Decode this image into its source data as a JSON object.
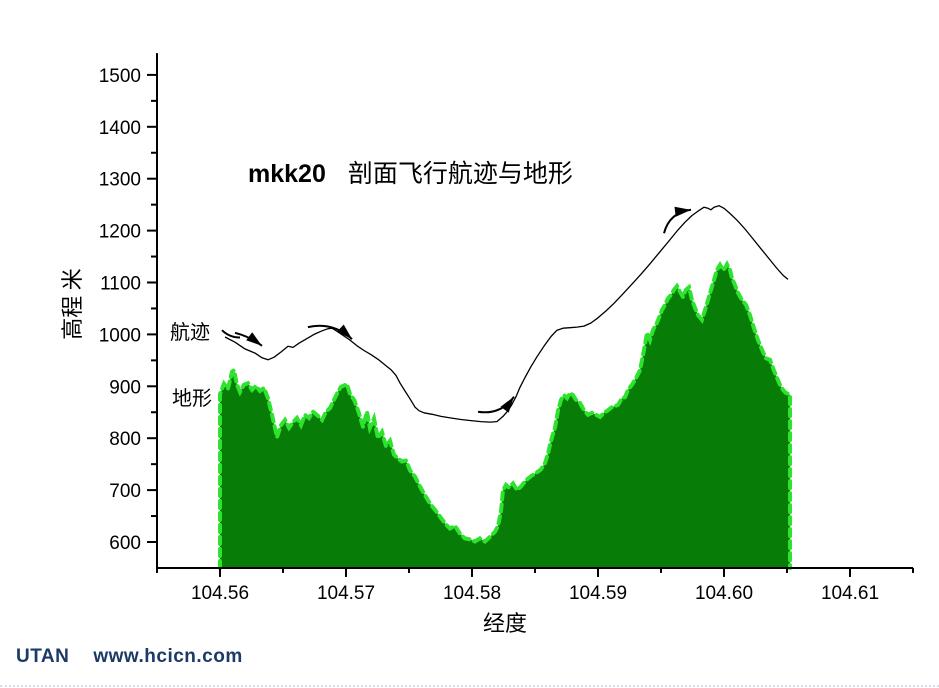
{
  "title": {
    "prefix": "mkk20",
    "text": "剖面飞行航迹与地形"
  },
  "series_labels": {
    "path": "航迹",
    "terrain": "地形"
  },
  "footer": {
    "brand": "UTAN",
    "url": "www.hcicn.com"
  },
  "colors": {
    "terrain_fill": "#077d07",
    "terrain_edge": "#2ee32e",
    "path_line": "#000000",
    "axis": "#000000",
    "footer_text": "#1c3a66"
  },
  "chart_data": {
    "type": "area+line",
    "title": "mkk20  剖面飞行航迹与地形",
    "xlabel": "经度",
    "ylabel": "高程 米",
    "xlim": [
      104.555,
      104.615
    ],
    "ylim": [
      550,
      1542
    ],
    "x_major_ticks": [
      104.56,
      104.57,
      104.58,
      104.59,
      104.6,
      104.61
    ],
    "x_minor_step": 0.005,
    "y_major_ticks": [
      600,
      700,
      800,
      900,
      1000,
      1100,
      1200,
      1300,
      1400,
      1500
    ],
    "y_minor_step": 50,
    "grid": false,
    "legend_position": "none",
    "series": [
      {
        "name": "航迹",
        "type": "line",
        "points": [
          [
            104.5604,
            995
          ],
          [
            104.56119,
            985
          ],
          [
            104.56198,
            972
          ],
          [
            104.56278,
            964
          ],
          [
            104.56333,
            955
          ],
          [
            104.56381,
            951
          ],
          [
            104.56429,
            956
          ],
          [
            104.56484,
            966
          ],
          [
            104.5654,
            977
          ],
          [
            104.56579,
            975
          ],
          [
            104.56627,
            983
          ],
          [
            104.56683,
            991
          ],
          [
            104.56746,
            1000
          ],
          [
            104.5681,
            1007
          ],
          [
            104.56857,
            1011
          ],
          [
            104.56889,
            1012
          ],
          [
            104.56929,
            1006
          ],
          [
            104.56976,
            998
          ],
          [
            104.57032,
            989
          ],
          [
            104.57087,
            978
          ],
          [
            104.57143,
            969
          ],
          [
            104.57198,
            961
          ],
          [
            104.57254,
            952
          ],
          [
            104.5731,
            941
          ],
          [
            104.57357,
            932
          ],
          [
            104.57397,
            921
          ],
          [
            104.57429,
            906
          ],
          [
            104.57468,
            891
          ],
          [
            104.57508,
            876
          ],
          [
            104.57548,
            860
          ],
          [
            104.57579,
            853
          ],
          [
            104.57619,
            849
          ],
          [
            104.57683,
            846
          ],
          [
            104.57754,
            842
          ],
          [
            104.57833,
            839
          ],
          [
            104.57913,
            836
          ],
          [
            104.57992,
            834
          ],
          [
            104.58071,
            832
          ],
          [
            104.58143,
            831
          ],
          [
            104.58198,
            832
          ],
          [
            104.58246,
            842
          ],
          [
            104.58286,
            853
          ],
          [
            104.58317,
            865
          ],
          [
            104.58349,
            880
          ],
          [
            104.58381,
            898
          ],
          [
            104.58421,
            917
          ],
          [
            104.58468,
            938
          ],
          [
            104.58516,
            957
          ],
          [
            104.58571,
            977
          ],
          [
            104.58627,
            996
          ],
          [
            104.58675,
            1008
          ],
          [
            104.58722,
            1012
          ],
          [
            104.58778,
            1013
          ],
          [
            104.58833,
            1014
          ],
          [
            104.58889,
            1016
          ],
          [
            104.58944,
            1022
          ],
          [
            104.59,
            1032
          ],
          [
            104.59063,
            1045
          ],
          [
            104.59127,
            1060
          ],
          [
            104.59198,
            1078
          ],
          [
            104.5927,
            1097
          ],
          [
            104.59341,
            1116
          ],
          [
            104.59413,
            1136
          ],
          [
            104.59484,
            1157
          ],
          [
            104.59556,
            1178
          ],
          [
            104.59627,
            1199
          ],
          [
            104.5969,
            1216
          ],
          [
            104.59746,
            1229
          ],
          [
            104.59802,
            1239
          ],
          [
            104.59841,
            1245
          ],
          [
            104.59873,
            1243
          ],
          [
            104.59897,
            1240
          ],
          [
            104.59921,
            1245
          ],
          [
            104.5996,
            1248
          ],
          [
            104.6,
            1243
          ],
          [
            104.60048,
            1233
          ],
          [
            104.60103,
            1220
          ],
          [
            104.60167,
            1203
          ],
          [
            104.6023,
            1184
          ],
          [
            104.60294,
            1165
          ],
          [
            104.60357,
            1146
          ],
          [
            104.60421,
            1127
          ],
          [
            104.60468,
            1114
          ],
          [
            104.60508,
            1106
          ]
        ]
      },
      {
        "name": "地形",
        "type": "area",
        "points": [
          [
            104.56,
            885
          ],
          [
            104.56032,
            905
          ],
          [
            104.56063,
            895
          ],
          [
            104.56095,
            928
          ],
          [
            104.56111,
            931
          ],
          [
            104.56135,
            903
          ],
          [
            104.56159,
            889
          ],
          [
            104.5619,
            903
          ],
          [
            104.56222,
            906
          ],
          [
            104.56254,
            893
          ],
          [
            104.56286,
            901
          ],
          [
            104.56317,
            891
          ],
          [
            104.56349,
            897
          ],
          [
            104.56381,
            877
          ],
          [
            104.56413,
            845
          ],
          [
            104.56452,
            802
          ],
          [
            104.56484,
            825
          ],
          [
            104.56516,
            835
          ],
          [
            104.56548,
            820
          ],
          [
            104.56579,
            831
          ],
          [
            104.56611,
            839
          ],
          [
            104.56643,
            825
          ],
          [
            104.56675,
            845
          ],
          [
            104.56706,
            839
          ],
          [
            104.56738,
            851
          ],
          [
            104.56778,
            843
          ],
          [
            104.5681,
            835
          ],
          [
            104.56841,
            851
          ],
          [
            104.56873,
            858
          ],
          [
            104.56905,
            874
          ],
          [
            104.56937,
            890
          ],
          [
            104.5696,
            899
          ],
          [
            104.57008,
            904
          ],
          [
            104.57032,
            885
          ],
          [
            104.57064,
            874
          ],
          [
            104.57095,
            854
          ],
          [
            104.57135,
            822
          ],
          [
            104.57167,
            851
          ],
          [
            104.5719,
            820
          ],
          [
            104.57222,
            838
          ],
          [
            104.57254,
            800
          ],
          [
            104.57286,
            812
          ],
          [
            104.57317,
            785
          ],
          [
            104.57349,
            795
          ],
          [
            104.57381,
            768
          ],
          [
            104.57413,
            761
          ],
          [
            104.57444,
            755
          ],
          [
            104.57476,
            757
          ],
          [
            104.57508,
            738
          ],
          [
            104.57548,
            726
          ],
          [
            104.57587,
            707
          ],
          [
            104.57627,
            690
          ],
          [
            104.57667,
            674
          ],
          [
            104.57706,
            662
          ],
          [
            104.57746,
            649
          ],
          [
            104.57786,
            636
          ],
          [
            104.57825,
            626
          ],
          [
            104.57865,
            631
          ],
          [
            104.57905,
            616
          ],
          [
            104.57944,
            607
          ],
          [
            104.57984,
            605
          ],
          [
            104.58024,
            601
          ],
          [
            104.58063,
            607
          ],
          [
            104.58103,
            601
          ],
          [
            104.58143,
            610
          ],
          [
            104.58183,
            620
          ],
          [
            104.58206,
            631
          ],
          [
            104.5823,
            660
          ],
          [
            104.58246,
            700
          ],
          [
            104.5827,
            710
          ],
          [
            104.58294,
            705
          ],
          [
            104.58325,
            713
          ],
          [
            104.58357,
            700
          ],
          [
            104.58389,
            707
          ],
          [
            104.58429,
            719
          ],
          [
            104.58468,
            727
          ],
          [
            104.58508,
            733
          ],
          [
            104.58548,
            740
          ],
          [
            104.58579,
            752
          ],
          [
            104.58603,
            770
          ],
          [
            104.58619,
            787
          ],
          [
            104.58635,
            802
          ],
          [
            104.58659,
            820
          ],
          [
            104.58683,
            854
          ],
          [
            104.58706,
            874
          ],
          [
            104.5873,
            883
          ],
          [
            104.58754,
            877
          ],
          [
            104.58778,
            887
          ],
          [
            104.58802,
            883
          ],
          [
            104.58825,
            874
          ],
          [
            104.58857,
            868
          ],
          [
            104.58889,
            854
          ],
          [
            104.58921,
            845
          ],
          [
            104.58952,
            849
          ],
          [
            104.58984,
            845
          ],
          [
            104.59016,
            841
          ],
          [
            104.59048,
            849
          ],
          [
            104.59079,
            854
          ],
          [
            104.59111,
            860
          ],
          [
            104.59159,
            864
          ],
          [
            104.5919,
            877
          ],
          [
            104.59214,
            879
          ],
          [
            104.59238,
            893
          ],
          [
            104.5927,
            903
          ],
          [
            104.59302,
            916
          ],
          [
            104.59333,
            931
          ],
          [
            104.59365,
            970
          ],
          [
            104.59389,
            1003
          ],
          [
            104.59413,
            989
          ],
          [
            104.59437,
            1009
          ],
          [
            104.5946,
            1018
          ],
          [
            104.59484,
            1032
          ],
          [
            104.59508,
            1047
          ],
          [
            104.59532,
            1057
          ],
          [
            104.59556,
            1070
          ],
          [
            104.59579,
            1076
          ],
          [
            104.59603,
            1086
          ],
          [
            104.59627,
            1093
          ],
          [
            104.59651,
            1082
          ],
          [
            104.59675,
            1072
          ],
          [
            104.59698,
            1086
          ],
          [
            104.59722,
            1091
          ],
          [
            104.59746,
            1066
          ],
          [
            104.5977,
            1051
          ],
          [
            104.59794,
            1037
          ],
          [
            104.59825,
            1028
          ],
          [
            104.59849,
            1047
          ],
          [
            104.59873,
            1066
          ],
          [
            104.59897,
            1086
          ],
          [
            104.59921,
            1105
          ],
          [
            104.59944,
            1124
          ],
          [
            104.59968,
            1134
          ],
          [
            104.59992,
            1124
          ],
          [
            104.60008,
            1128
          ],
          [
            104.60024,
            1135
          ],
          [
            104.60048,
            1124
          ],
          [
            104.60063,
            1109
          ],
          [
            104.60087,
            1095
          ],
          [
            104.60111,
            1080
          ],
          [
            104.60143,
            1066
          ],
          [
            104.60175,
            1057
          ],
          [
            104.60206,
            1037
          ],
          [
            104.60238,
            1012
          ],
          [
            104.6027,
            989
          ],
          [
            104.60302,
            970
          ],
          [
            104.60333,
            954
          ],
          [
            104.60365,
            951
          ],
          [
            104.60389,
            935
          ],
          [
            104.60413,
            921
          ],
          [
            104.60444,
            903
          ],
          [
            104.60468,
            893
          ],
          [
            104.60492,
            887
          ],
          [
            104.60516,
            885
          ],
          [
            104.60524,
            883
          ]
        ]
      }
    ],
    "arrows": [
      {
        "from": [
          104.56119,
          1003
        ],
        "to": [
          104.56333,
          978
        ],
        "bend": 3,
        "head": true
      },
      {
        "from": [
          104.56698,
          1014
        ],
        "to": [
          104.57048,
          991
        ],
        "bend": 12,
        "head": true
      },
      {
        "from": [
          104.58048,
          851
        ],
        "to": [
          104.58333,
          880
        ],
        "bend": -12,
        "head": true
      },
      {
        "from": [
          104.59524,
          1195
        ],
        "to": [
          104.59738,
          1240
        ],
        "bend": 12,
        "head": true
      },
      {
        "from": [
          104.56016,
          1008
        ],
        "to": [
          104.56159,
          994
        ],
        "bend": -4,
        "head": false
      }
    ]
  }
}
